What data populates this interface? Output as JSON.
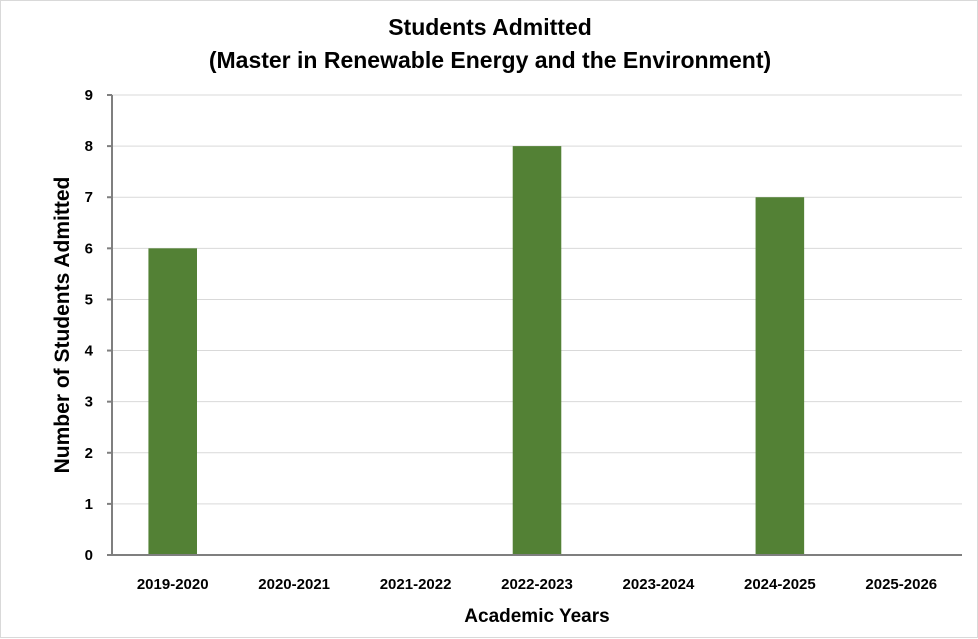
{
  "chart_data": {
    "type": "bar",
    "title_line1": "Students Admitted",
    "title_line2": "(Master in Renewable Energy and the Environment)",
    "xlabel": "Academic Years",
    "ylabel": "Number of Students Admitted",
    "categories": [
      "2019-2020",
      "2020-2021",
      "2021-2022",
      "2022-2023",
      "2023-2024",
      "2024-2025",
      "2025-2026"
    ],
    "values": [
      6,
      0,
      0,
      8,
      0,
      7,
      0
    ],
    "ylim": [
      0,
      9
    ],
    "yticks": [
      "0",
      "1",
      "2",
      "3",
      "4",
      "5",
      "6",
      "7",
      "8",
      "9"
    ],
    "grid": true,
    "legend": "none",
    "bar_color": "#538135",
    "grid_color": "#d9d9d9",
    "axis_color": "#7f7f7f"
  }
}
